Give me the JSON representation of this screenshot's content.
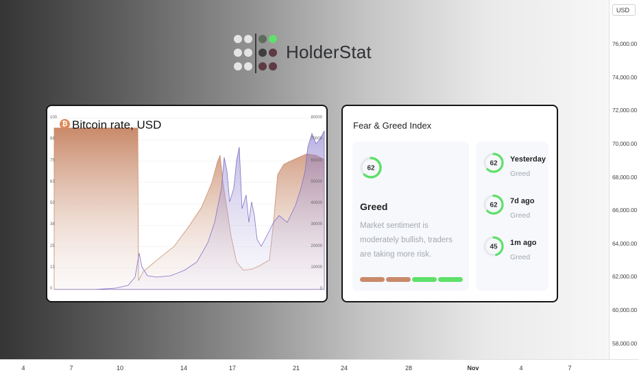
{
  "chart_area": {
    "currency_selector": "USD",
    "price_axis": [
      "76,000.00",
      "74,000.00",
      "72,000.00",
      "70,000.00",
      "68,000.00",
      "66,000.00",
      "64,000.00",
      "62,000.00",
      "60,000.00",
      "58,000.00"
    ],
    "date_axis": [
      {
        "label": "4",
        "bold": false
      },
      {
        "label": "7",
        "bold": false
      },
      {
        "label": "10",
        "bold": false
      },
      {
        "label": "14",
        "bold": false
      },
      {
        "label": "17",
        "bold": false
      },
      {
        "label": "21",
        "bold": false
      },
      {
        "label": "24",
        "bold": false
      },
      {
        "label": "28",
        "bold": false
      },
      {
        "label": "Nov",
        "bold": true
      },
      {
        "label": "4",
        "bold": false
      },
      {
        "label": "7",
        "bold": false
      }
    ]
  },
  "logo": {
    "text": "HolderStat",
    "colors": {
      "light": "#e4e4e4",
      "gray": "#5d6b5d",
      "green": "#5fe06a",
      "dark": "#3e3e3e",
      "maroon": "#5e3a44"
    }
  },
  "bitcoin_card": {
    "icon": "bitcoin-icon",
    "icon_glyph": "₿",
    "title": "Bitcoin rate, USD",
    "left_axis": [
      "100",
      "88",
      "75",
      "63",
      "50",
      "38",
      "25",
      "13",
      "0"
    ],
    "right_axis": [
      "80000",
      "70000",
      "60000",
      "50000",
      "40000",
      "30000",
      "20000",
      "10000",
      "0"
    ],
    "colors": {
      "fear_greed_fill": "#c98a6a",
      "price_line": "#8070c8"
    }
  },
  "fear_greed_card": {
    "title": "Fear & Greed Index",
    "current": {
      "value": "62",
      "label": "Greed",
      "description": "Market sentiment is moderately bullish, traders are taking more risk.",
      "fraction": 0.62
    },
    "segments": [
      "#c98a6a",
      "#c98a6a",
      "#5ee06a",
      "#5ee06a"
    ],
    "history": [
      {
        "value": "62",
        "label": "Yesterday",
        "sub": "Greed",
        "fraction": 0.62
      },
      {
        "value": "62",
        "label": "7d ago",
        "sub": "Greed",
        "fraction": 0.62
      },
      {
        "value": "45",
        "label": "1m ago",
        "sub": "Greed",
        "fraction": 0.45
      }
    ],
    "accent": "#5ee06a"
  }
}
